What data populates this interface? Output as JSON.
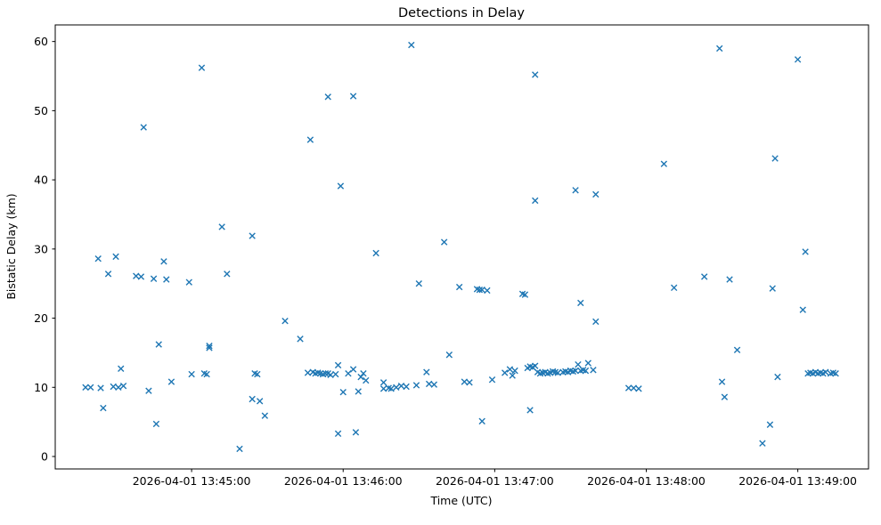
{
  "chart_data": {
    "type": "scatter",
    "title": "Detections in Delay",
    "xlabel": "Time (UTC)",
    "ylabel": "Bistatic Delay (km)",
    "marker": "x",
    "marker_color": "#1f77b4",
    "grid": false,
    "legend": "none",
    "date": "2026-04-01",
    "xlim": [
      "13:44:06",
      "13:49:28"
    ],
    "ylim": [
      -1.8,
      62.4
    ],
    "y_ticks": [
      0,
      10,
      20,
      30,
      40,
      50,
      60
    ],
    "x_ticks": [
      {
        "time": "13:45:00",
        "label": "2026-04-01 13:45:00"
      },
      {
        "time": "13:46:00",
        "label": "2026-04-01 13:46:00"
      },
      {
        "time": "13:47:00",
        "label": "2026-04-01 13:47:00"
      },
      {
        "time": "13:48:00",
        "label": "2026-04-01 13:48:00"
      },
      {
        "time": "13:49:00",
        "label": "2026-04-01 13:49:00"
      }
    ],
    "points": [
      [
        "13:44:18",
        10.0
      ],
      [
        "13:44:20",
        10.0
      ],
      [
        "13:44:23",
        28.6
      ],
      [
        "13:44:24",
        9.9
      ],
      [
        "13:44:25",
        7.0
      ],
      [
        "13:44:27",
        26.4
      ],
      [
        "13:44:29",
        10.1
      ],
      [
        "13:44:30",
        28.9
      ],
      [
        "13:44:31",
        10.0
      ],
      [
        "13:44:32",
        12.7
      ],
      [
        "13:44:33",
        10.2
      ],
      [
        "13:44:38",
        26.1
      ],
      [
        "13:44:40",
        26.0
      ],
      [
        "13:44:41",
        47.6
      ],
      [
        "13:44:43",
        9.5
      ],
      [
        "13:44:45",
        25.7
      ],
      [
        "13:44:46",
        4.7
      ],
      [
        "13:44:47",
        16.2
      ],
      [
        "13:44:49",
        28.2
      ],
      [
        "13:44:50",
        25.6
      ],
      [
        "13:44:52",
        10.8
      ],
      [
        "13:44:59",
        25.2
      ],
      [
        "13:45:00",
        11.9
      ],
      [
        "13:45:04",
        56.2
      ],
      [
        "13:45:05",
        12.0
      ],
      [
        "13:45:06",
        11.9
      ],
      [
        "13:45:07",
        16.0
      ],
      [
        "13:45:07",
        15.7
      ],
      [
        "13:45:12",
        33.2
      ],
      [
        "13:45:14",
        26.4
      ],
      [
        "13:45:19",
        1.1
      ],
      [
        "13:45:24",
        31.9
      ],
      [
        "13:45:24",
        8.3
      ],
      [
        "13:45:25",
        12.0
      ],
      [
        "13:45:26",
        11.9
      ],
      [
        "13:45:27",
        8.0
      ],
      [
        "13:45:29",
        5.9
      ],
      [
        "13:45:37",
        19.6
      ],
      [
        "13:45:43",
        17.0
      ],
      [
        "13:45:46",
        12.1
      ],
      [
        "13:45:47",
        45.8
      ],
      [
        "13:45:48",
        12.2
      ],
      [
        "13:45:49",
        12.0
      ],
      [
        "13:45:50",
        12.1
      ],
      [
        "13:45:51",
        12.0
      ],
      [
        "13:45:52",
        11.9
      ],
      [
        "13:45:53",
        12.0
      ],
      [
        "13:45:54",
        52.0
      ],
      [
        "13:45:54",
        12.0
      ],
      [
        "13:45:55",
        11.8
      ],
      [
        "13:45:57",
        11.9
      ],
      [
        "13:45:58",
        13.2
      ],
      [
        "13:45:58",
        3.3
      ],
      [
        "13:45:59",
        39.1
      ],
      [
        "13:46:00",
        9.3
      ],
      [
        "13:46:02",
        12.0
      ],
      [
        "13:46:04",
        52.1
      ],
      [
        "13:46:04",
        12.6
      ],
      [
        "13:46:05",
        3.5
      ],
      [
        "13:46:06",
        9.4
      ],
      [
        "13:46:07",
        11.5
      ],
      [
        "13:46:08",
        12.0
      ],
      [
        "13:46:09",
        11.0
      ],
      [
        "13:46:13",
        29.4
      ],
      [
        "13:46:16",
        10.7
      ],
      [
        "13:46:16",
        9.8
      ],
      [
        "13:46:18",
        9.9
      ],
      [
        "13:46:19",
        9.8
      ],
      [
        "13:46:21",
        10.0
      ],
      [
        "13:46:23",
        10.2
      ],
      [
        "13:46:25",
        10.1
      ],
      [
        "13:46:27",
        59.5
      ],
      [
        "13:46:29",
        10.3
      ],
      [
        "13:46:30",
        25.0
      ],
      [
        "13:46:33",
        12.2
      ],
      [
        "13:46:34",
        10.5
      ],
      [
        "13:46:36",
        10.4
      ],
      [
        "13:46:40",
        31.0
      ],
      [
        "13:46:42",
        14.7
      ],
      [
        "13:46:46",
        24.5
      ],
      [
        "13:46:48",
        10.8
      ],
      [
        "13:46:50",
        10.7
      ],
      [
        "13:46:53",
        24.2
      ],
      [
        "13:46:54",
        24.1
      ],
      [
        "13:46:55",
        24.1
      ],
      [
        "13:46:55",
        5.1
      ],
      [
        "13:46:57",
        24.0
      ],
      [
        "13:46:59",
        11.1
      ],
      [
        "13:47:04",
        12.1
      ],
      [
        "13:47:06",
        12.6
      ],
      [
        "13:47:07",
        11.7
      ],
      [
        "13:47:08",
        12.4
      ],
      [
        "13:47:11",
        23.5
      ],
      [
        "13:47:12",
        23.4
      ],
      [
        "13:47:13",
        12.8
      ],
      [
        "13:47:14",
        13.0
      ],
      [
        "13:47:14",
        6.7
      ],
      [
        "13:47:15",
        12.9
      ],
      [
        "13:47:16",
        55.2
      ],
      [
        "13:47:16",
        37.0
      ],
      [
        "13:47:16",
        13.1
      ],
      [
        "13:47:17",
        12.2
      ],
      [
        "13:47:18",
        12.0
      ],
      [
        "13:47:19",
        12.1
      ],
      [
        "13:47:20",
        12.2
      ],
      [
        "13:47:21",
        12.0
      ],
      [
        "13:47:22",
        12.1
      ],
      [
        "13:47:23",
        12.3
      ],
      [
        "13:47:24",
        12.2
      ],
      [
        "13:47:25",
        12.1
      ],
      [
        "13:47:27",
        12.2
      ],
      [
        "13:47:28",
        12.3
      ],
      [
        "13:47:29",
        12.2
      ],
      [
        "13:47:30",
        12.4
      ],
      [
        "13:47:31",
        12.3
      ],
      [
        "13:47:32",
        38.5
      ],
      [
        "13:47:32",
        12.4
      ],
      [
        "13:47:33",
        13.3
      ],
      [
        "13:47:34",
        22.2
      ],
      [
        "13:47:34",
        12.4
      ],
      [
        "13:47:35",
        12.5
      ],
      [
        "13:47:36",
        12.4
      ],
      [
        "13:47:37",
        13.5
      ],
      [
        "13:47:39",
        12.5
      ],
      [
        "13:47:40",
        37.9
      ],
      [
        "13:47:40",
        19.5
      ],
      [
        "13:47:53",
        9.9
      ],
      [
        "13:47:55",
        9.9
      ],
      [
        "13:47:57",
        9.8
      ],
      [
        "13:48:07",
        42.3
      ],
      [
        "13:48:11",
        24.4
      ],
      [
        "13:48:23",
        26.0
      ],
      [
        "13:48:29",
        59.0
      ],
      [
        "13:48:30",
        10.8
      ],
      [
        "13:48:31",
        8.6
      ],
      [
        "13:48:33",
        25.6
      ],
      [
        "13:48:36",
        15.4
      ],
      [
        "13:48:46",
        1.9
      ],
      [
        "13:48:49",
        4.6
      ],
      [
        "13:48:50",
        24.3
      ],
      [
        "13:48:51",
        43.1
      ],
      [
        "13:48:52",
        11.5
      ],
      [
        "13:49:00",
        57.4
      ],
      [
        "13:49:02",
        21.2
      ],
      [
        "13:49:03",
        29.6
      ],
      [
        "13:49:04",
        12.0
      ],
      [
        "13:49:05",
        12.1
      ],
      [
        "13:49:06",
        12.0
      ],
      [
        "13:49:07",
        12.2
      ],
      [
        "13:49:08",
        12.0
      ],
      [
        "13:49:09",
        12.1
      ],
      [
        "13:49:10",
        12.0
      ],
      [
        "13:49:11",
        12.2
      ],
      [
        "13:49:13",
        12.0
      ],
      [
        "13:49:14",
        12.1
      ],
      [
        "13:49:15",
        12.0
      ]
    ]
  }
}
